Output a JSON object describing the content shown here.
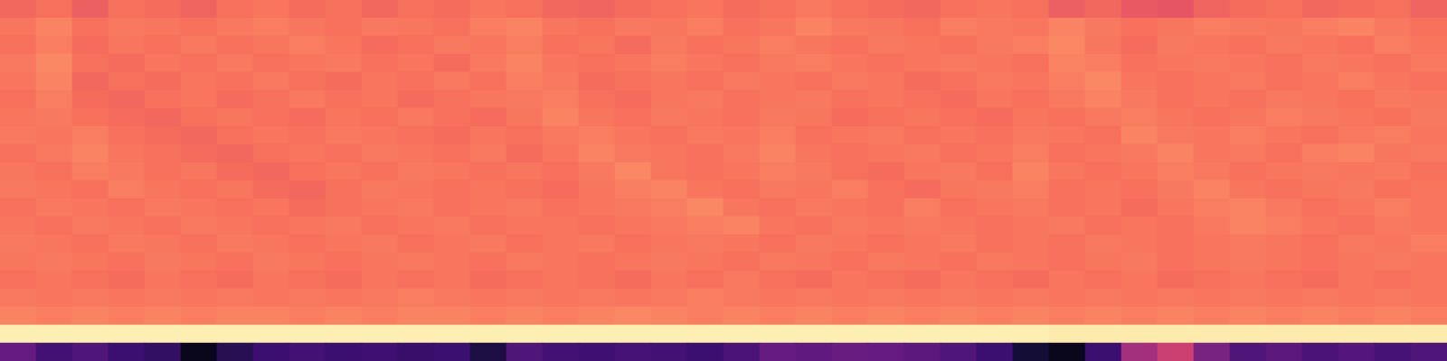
{
  "chart_data": {
    "type": "heatmap",
    "color": "magma",
    "zlim": [
      0,
      1
    ],
    "tick_labels": false,
    "grid": false,
    "cells": [
      [
        0.68,
        0.7,
        0.66,
        0.7,
        0.69,
        0.67,
        0.7,
        0.71,
        0.69,
        0.7,
        0.68,
        0.7,
        0.69,
        0.71,
        0.7,
        0.68,
        0.67,
        0.69,
        0.7,
        0.71,
        0.69,
        0.7,
        0.72,
        0.7,
        0.69,
        0.68,
        0.7,
        0.71,
        0.7,
        0.66,
        0.68,
        0.64,
        0.63,
        0.67,
        0.69,
        0.7,
        0.68,
        0.69,
        0.7,
        0.67
      ],
      [
        0.71,
        0.74,
        0.7,
        0.72,
        0.71,
        0.7,
        0.72,
        0.73,
        0.71,
        0.7,
        0.72,
        0.71,
        0.7,
        0.73,
        0.74,
        0.71,
        0.7,
        0.72,
        0.71,
        0.73,
        0.7,
        0.71,
        0.74,
        0.72,
        0.71,
        0.7,
        0.73,
        0.72,
        0.71,
        0.74,
        0.72,
        0.7,
        0.71,
        0.73,
        0.72,
        0.71,
        0.73,
        0.74,
        0.72,
        0.7
      ],
      [
        0.7,
        0.73,
        0.69,
        0.71,
        0.7,
        0.72,
        0.7,
        0.71,
        0.73,
        0.71,
        0.69,
        0.7,
        0.72,
        0.71,
        0.73,
        0.7,
        0.71,
        0.69,
        0.72,
        0.7,
        0.71,
        0.73,
        0.71,
        0.7,
        0.72,
        0.71,
        0.7,
        0.72,
        0.73,
        0.75,
        0.71,
        0.69,
        0.72,
        0.71,
        0.7,
        0.72,
        0.71,
        0.7,
        0.73,
        0.71
      ],
      [
        0.72,
        0.75,
        0.7,
        0.69,
        0.71,
        0.7,
        0.72,
        0.7,
        0.71,
        0.72,
        0.7,
        0.71,
        0.69,
        0.72,
        0.74,
        0.71,
        0.7,
        0.71,
        0.73,
        0.71,
        0.7,
        0.72,
        0.73,
        0.71,
        0.7,
        0.71,
        0.72,
        0.71,
        0.7,
        0.74,
        0.73,
        0.7,
        0.71,
        0.72,
        0.71,
        0.7,
        0.72,
        0.71,
        0.7,
        0.72
      ],
      [
        0.71,
        0.74,
        0.68,
        0.7,
        0.69,
        0.71,
        0.7,
        0.72,
        0.7,
        0.69,
        0.71,
        0.7,
        0.72,
        0.7,
        0.73,
        0.72,
        0.69,
        0.7,
        0.71,
        0.7,
        0.72,
        0.71,
        0.7,
        0.72,
        0.71,
        0.69,
        0.7,
        0.72,
        0.71,
        0.73,
        0.75,
        0.71,
        0.7,
        0.71,
        0.72,
        0.7,
        0.71,
        0.73,
        0.71,
        0.7
      ],
      [
        0.7,
        0.73,
        0.69,
        0.68,
        0.7,
        0.71,
        0.69,
        0.7,
        0.72,
        0.7,
        0.71,
        0.69,
        0.7,
        0.71,
        0.72,
        0.73,
        0.7,
        0.69,
        0.71,
        0.72,
        0.7,
        0.71,
        0.72,
        0.7,
        0.71,
        0.7,
        0.69,
        0.71,
        0.7,
        0.72,
        0.74,
        0.72,
        0.7,
        0.71,
        0.7,
        0.72,
        0.71,
        0.7,
        0.72,
        0.71
      ],
      [
        0.71,
        0.72,
        0.7,
        0.69,
        0.68,
        0.7,
        0.71,
        0.7,
        0.69,
        0.71,
        0.7,
        0.72,
        0.7,
        0.69,
        0.71,
        0.74,
        0.71,
        0.7,
        0.72,
        0.71,
        0.7,
        0.72,
        0.71,
        0.69,
        0.7,
        0.71,
        0.7,
        0.69,
        0.71,
        0.7,
        0.72,
        0.73,
        0.71,
        0.7,
        0.71,
        0.73,
        0.72,
        0.71,
        0.7,
        0.72
      ],
      [
        0.72,
        0.71,
        0.73,
        0.7,
        0.69,
        0.68,
        0.7,
        0.71,
        0.7,
        0.72,
        0.71,
        0.7,
        0.69,
        0.71,
        0.7,
        0.72,
        0.73,
        0.71,
        0.7,
        0.72,
        0.71,
        0.73,
        0.7,
        0.71,
        0.72,
        0.7,
        0.71,
        0.7,
        0.72,
        0.71,
        0.7,
        0.74,
        0.72,
        0.71,
        0.73,
        0.71,
        0.7,
        0.72,
        0.73,
        0.71
      ],
      [
        0.7,
        0.72,
        0.74,
        0.71,
        0.7,
        0.69,
        0.68,
        0.7,
        0.71,
        0.7,
        0.72,
        0.71,
        0.7,
        0.72,
        0.69,
        0.71,
        0.74,
        0.72,
        0.71,
        0.7,
        0.72,
        0.74,
        0.71,
        0.7,
        0.71,
        0.72,
        0.7,
        0.71,
        0.73,
        0.7,
        0.71,
        0.72,
        0.74,
        0.71,
        0.72,
        0.7,
        0.73,
        0.74,
        0.71,
        0.72
      ],
      [
        0.71,
        0.7,
        0.73,
        0.72,
        0.7,
        0.71,
        0.69,
        0.68,
        0.7,
        0.71,
        0.7,
        0.72,
        0.71,
        0.7,
        0.71,
        0.7,
        0.72,
        0.75,
        0.71,
        0.7,
        0.71,
        0.73,
        0.72,
        0.7,
        0.69,
        0.71,
        0.72,
        0.7,
        0.74,
        0.71,
        0.7,
        0.71,
        0.73,
        0.72,
        0.7,
        0.71,
        0.72,
        0.71,
        0.72,
        0.7
      ],
      [
        0.72,
        0.71,
        0.7,
        0.73,
        0.71,
        0.7,
        0.71,
        0.69,
        0.68,
        0.7,
        0.72,
        0.71,
        0.7,
        0.71,
        0.7,
        0.69,
        0.71,
        0.73,
        0.74,
        0.71,
        0.7,
        0.72,
        0.71,
        0.73,
        0.7,
        0.69,
        0.71,
        0.72,
        0.73,
        0.7,
        0.71,
        0.7,
        0.72,
        0.74,
        0.71,
        0.7,
        0.71,
        0.72,
        0.7,
        0.71
      ],
      [
        0.7,
        0.72,
        0.71,
        0.7,
        0.72,
        0.71,
        0.7,
        0.71,
        0.69,
        0.7,
        0.71,
        0.72,
        0.7,
        0.71,
        0.72,
        0.7,
        0.71,
        0.72,
        0.73,
        0.75,
        0.71,
        0.7,
        0.72,
        0.71,
        0.7,
        0.73,
        0.7,
        0.71,
        0.72,
        0.7,
        0.71,
        0.69,
        0.71,
        0.73,
        0.74,
        0.72,
        0.7,
        0.71,
        0.73,
        0.71
      ],
      [
        0.71,
        0.7,
        0.72,
        0.71,
        0.7,
        0.72,
        0.71,
        0.7,
        0.71,
        0.72,
        0.7,
        0.71,
        0.72,
        0.7,
        0.71,
        0.71,
        0.7,
        0.71,
        0.72,
        0.73,
        0.74,
        0.71,
        0.7,
        0.72,
        0.71,
        0.72,
        0.71,
        0.7,
        0.71,
        0.72,
        0.7,
        0.71,
        0.7,
        0.72,
        0.74,
        0.73,
        0.71,
        0.7,
        0.72,
        0.71
      ],
      [
        0.72,
        0.71,
        0.7,
        0.72,
        0.71,
        0.7,
        0.72,
        0.71,
        0.7,
        0.71,
        0.72,
        0.7,
        0.71,
        0.72,
        0.7,
        0.71,
        0.72,
        0.7,
        0.71,
        0.72,
        0.71,
        0.7,
        0.72,
        0.71,
        0.7,
        0.71,
        0.72,
        0.7,
        0.71,
        0.7,
        0.72,
        0.71,
        0.7,
        0.71,
        0.72,
        0.71,
        0.7,
        0.72,
        0.71,
        0.73
      ],
      [
        0.71,
        0.72,
        0.71,
        0.7,
        0.72,
        0.71,
        0.7,
        0.72,
        0.71,
        0.7,
        0.71,
        0.72,
        0.71,
        0.7,
        0.72,
        0.71,
        0.7,
        0.71,
        0.72,
        0.71,
        0.7,
        0.72,
        0.71,
        0.7,
        0.72,
        0.71,
        0.7,
        0.72,
        0.71,
        0.7,
        0.71,
        0.72,
        0.7,
        0.71,
        0.72,
        0.71,
        0.7,
        0.71,
        0.72,
        0.71
      ],
      [
        0.7,
        0.71,
        0.7,
        0.69,
        0.71,
        0.7,
        0.69,
        0.71,
        0.7,
        0.69,
        0.71,
        0.7,
        0.71,
        0.69,
        0.7,
        0.71,
        0.7,
        0.69,
        0.71,
        0.7,
        0.72,
        0.7,
        0.69,
        0.71,
        0.7,
        0.69,
        0.71,
        0.7,
        0.69,
        0.71,
        0.7,
        0.71,
        0.69,
        0.7,
        0.71,
        0.7,
        0.69,
        0.71,
        0.7,
        0.71
      ],
      [
        0.72,
        0.71,
        0.72,
        0.71,
        0.72,
        0.71,
        0.72,
        0.71,
        0.72,
        0.71,
        0.72,
        0.73,
        0.72,
        0.71,
        0.72,
        0.71,
        0.72,
        0.71,
        0.72,
        0.73,
        0.72,
        0.71,
        0.72,
        0.71,
        0.72,
        0.71,
        0.72,
        0.71,
        0.72,
        0.71,
        0.72,
        0.71,
        0.72,
        0.71,
        0.72,
        0.71,
        0.72,
        0.71,
        0.72,
        0.71
      ],
      [
        0.74,
        0.73,
        0.74,
        0.73,
        0.74,
        0.73,
        0.74,
        0.74,
        0.73,
        0.74,
        0.73,
        0.74,
        0.74,
        0.73,
        0.74,
        0.73,
        0.74,
        0.75,
        0.74,
        0.73,
        0.74,
        0.73,
        0.74,
        0.73,
        0.74,
        0.73,
        0.74,
        0.73,
        0.74,
        0.73,
        0.74,
        0.73,
        0.74,
        0.73,
        0.74,
        0.73,
        0.74,
        0.73,
        0.74,
        0.73
      ],
      [
        0.97,
        0.97,
        0.97,
        0.97,
        0.97,
        0.97,
        0.97,
        0.97,
        0.97,
        0.97,
        0.97,
        0.97,
        0.97,
        0.97,
        0.97,
        0.97,
        0.97,
        0.97,
        0.97,
        0.97,
        0.97,
        0.97,
        0.97,
        0.97,
        0.97,
        0.97,
        0.97,
        0.97,
        0.97,
        0.96,
        0.96,
        0.96,
        0.96,
        0.96,
        0.96,
        0.96,
        0.96,
        0.96,
        0.96,
        0.96
      ],
      [
        0.3,
        0.22,
        0.25,
        0.2,
        0.18,
        0.05,
        0.15,
        0.2,
        0.22,
        0.2,
        0.21,
        0.19,
        0.2,
        0.12,
        0.25,
        0.22,
        0.21,
        0.23,
        0.22,
        0.2,
        0.24,
        0.3,
        0.29,
        0.31,
        0.3,
        0.28,
        0.25,
        0.2,
        0.1,
        0.05,
        0.2,
        0.45,
        0.55,
        0.35,
        0.25,
        0.28,
        0.24,
        0.26,
        0.23,
        0.25
      ]
    ]
  }
}
